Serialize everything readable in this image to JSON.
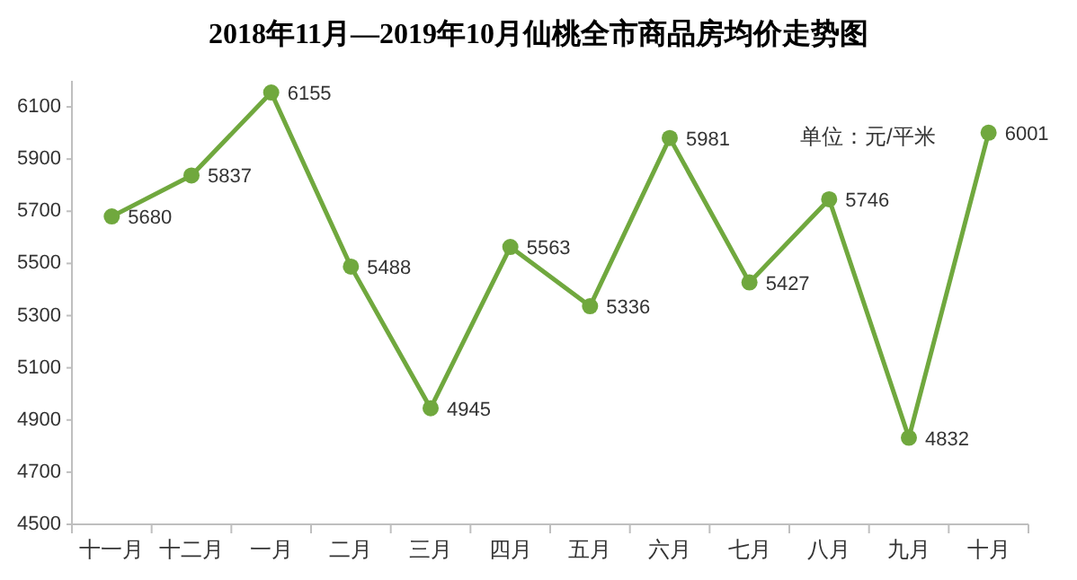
{
  "chart_data": {
    "type": "line",
    "title": "2018年11月—2019年10月仙桃全市商品房均价走势图",
    "annotations": [
      "单位：元/平米"
    ],
    "categories": [
      "十一月",
      "十二月",
      "一月",
      "二月",
      "三月",
      "四月",
      "五月",
      "六月",
      "七月",
      "八月",
      "九月",
      "十月"
    ],
    "values": [
      5680,
      5837,
      6155,
      5488,
      4945,
      5563,
      5336,
      5981,
      5427,
      5746,
      4832,
      6001
    ],
    "color": "#70a83e",
    "marker": "circle",
    "data_labels": true,
    "ylim": [
      4500,
      6200
    ],
    "yticks": [
      4500,
      4700,
      4900,
      5100,
      5300,
      5500,
      5700,
      5900,
      6100
    ]
  }
}
